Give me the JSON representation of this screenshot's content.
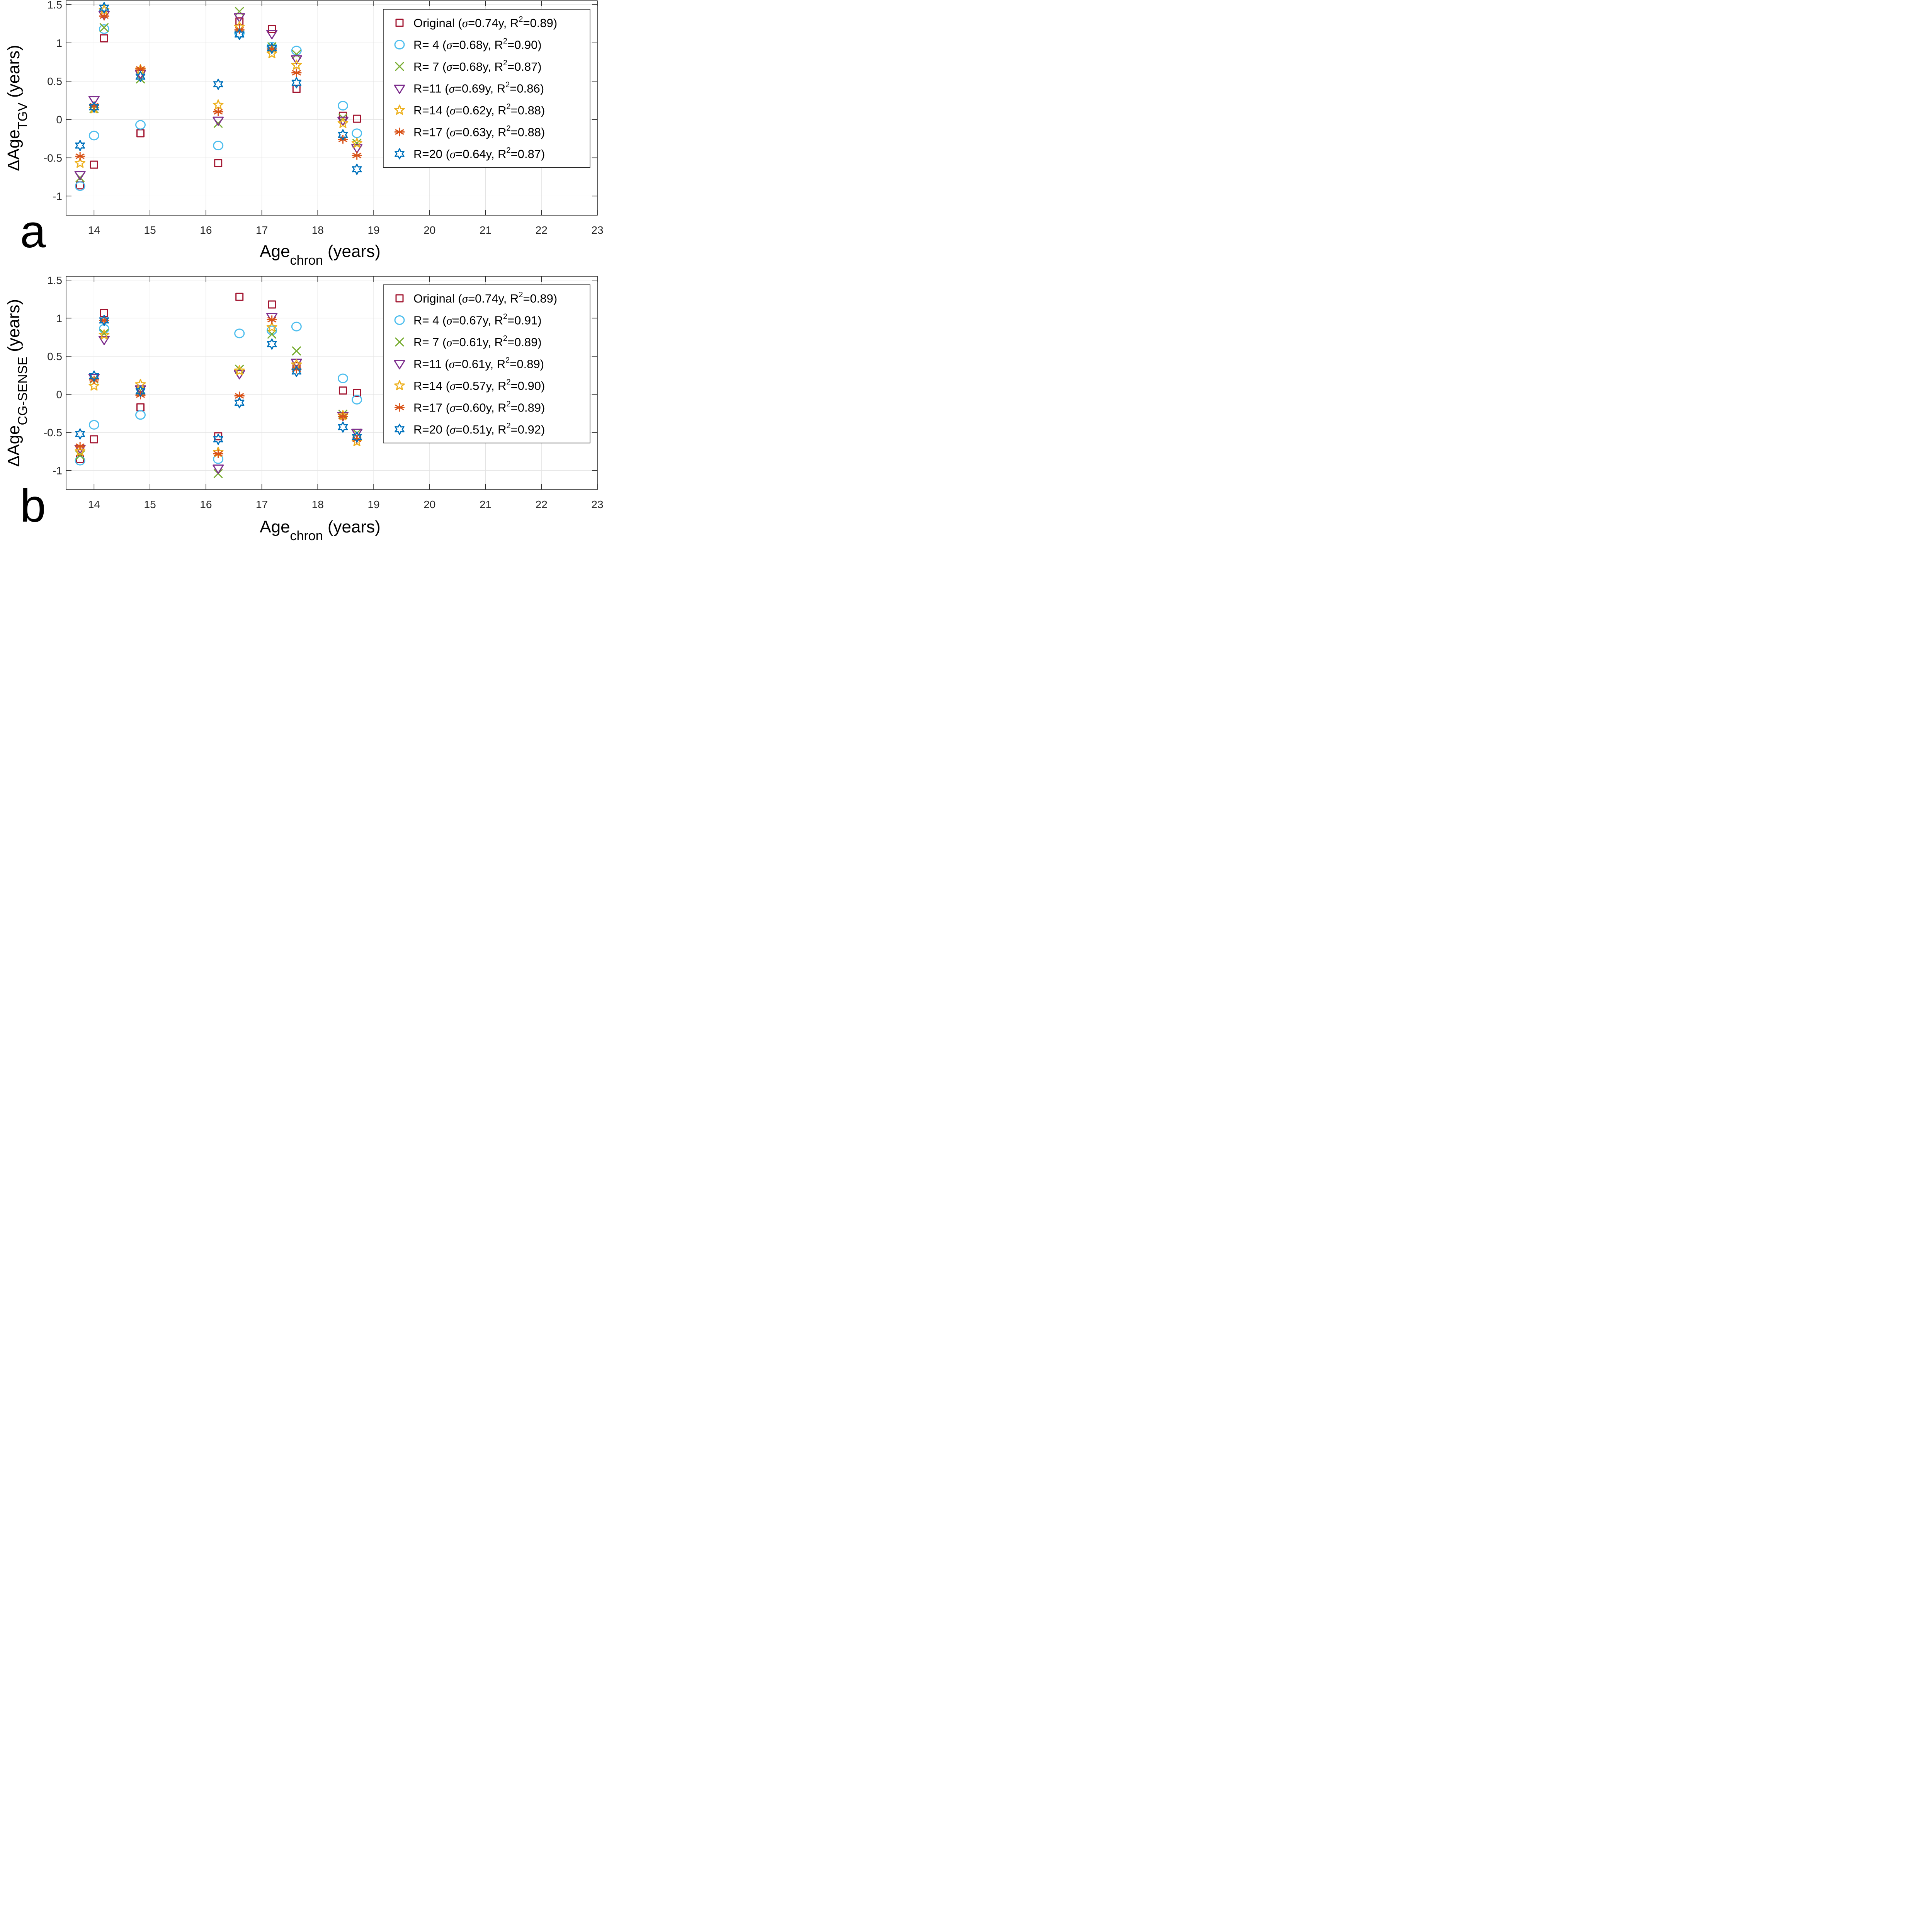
{
  "chart_data": [
    {
      "type": "scatter",
      "panel_letter": "a",
      "ylabel_main": "ΔAge",
      "ylabel_sub": "TGV",
      "ylabel_unit": " (years)",
      "xlabel_main": "Age",
      "xlabel_sub": "chron",
      "xlabel_unit": " (years)",
      "xlim": [
        13.5,
        23
      ],
      "ylim": [
        -1.25,
        1.55
      ],
      "xticks": [
        14,
        15,
        16,
        17,
        18,
        19,
        20,
        21,
        22,
        23
      ],
      "yticks": [
        -1,
        -0.5,
        0,
        0.5,
        1,
        1.5
      ],
      "ytick_labels": [
        "-1",
        "-0.5",
        "0",
        "0.5",
        "1",
        "1.5"
      ],
      "grid": true,
      "legend_position": "top-right",
      "x": [
        13.75,
        14.0,
        14.18,
        14.83,
        16.22,
        16.6,
        17.18,
        17.62,
        18.45,
        18.7
      ],
      "series": [
        {
          "name": "Original",
          "sigma": "0.74y",
          "r2": "0.89",
          "marker": "square",
          "color": "#A2142F",
          "values": [
            -0.86,
            -0.59,
            1.06,
            -0.18,
            -0.57,
            1.28,
            1.18,
            0.4,
            0.05,
            0.01
          ]
        },
        {
          "name": "R=  4",
          "sigma": "0.68y",
          "r2": "0.90",
          "marker": "circle",
          "color": "#4DBEEE",
          "values": [
            -0.87,
            -0.21,
            1.18,
            -0.07,
            -0.34,
            1.13,
            0.95,
            0.9,
            0.18,
            -0.18
          ]
        },
        {
          "name": "R=  7",
          "sigma": "0.68y",
          "r2": "0.87",
          "marker": "x",
          "color": "#77AC30",
          "values": [
            -0.76,
            0.14,
            1.2,
            0.53,
            -0.05,
            1.41,
            0.95,
            0.85,
            0.02,
            -0.31
          ]
        },
        {
          "name": "R=11",
          "sigma": "0.69y",
          "r2": "0.86",
          "marker": "triangle-down",
          "color": "#7E2F8E",
          "values": [
            -0.72,
            0.26,
            1.37,
            0.6,
            -0.01,
            1.34,
            1.12,
            0.79,
            -0.01,
            -0.37
          ]
        },
        {
          "name": "R=14",
          "sigma": "0.62y",
          "r2": "0.88",
          "marker": "pentagram",
          "color": "#EDB120",
          "values": [
            -0.57,
            0.14,
            1.43,
            0.65,
            0.19,
            1.21,
            0.86,
            0.71,
            -0.05,
            -0.31
          ]
        },
        {
          "name": "R=17",
          "sigma": "0.63y",
          "r2": "0.88",
          "marker": "asterisk",
          "color": "#D95319",
          "values": [
            -0.48,
            0.18,
            1.35,
            0.66,
            0.1,
            1.17,
            0.92,
            0.61,
            -0.26,
            -0.47
          ]
        },
        {
          "name": "R=20",
          "sigma": "0.64y",
          "r2": "0.87",
          "marker": "hexagram",
          "color": "#0072BD",
          "values": [
            -0.34,
            0.16,
            1.46,
            0.56,
            0.46,
            1.11,
            0.93,
            0.48,
            -0.2,
            -0.65
          ]
        }
      ]
    },
    {
      "type": "scatter",
      "panel_letter": "b",
      "ylabel_main": "ΔAge",
      "ylabel_sub": "CG-SENSE",
      "ylabel_unit": " (years)",
      "xlabel_main": "Age",
      "xlabel_sub": "chron",
      "xlabel_unit": " (years)",
      "xlim": [
        13.5,
        23
      ],
      "ylim": [
        -1.25,
        1.55
      ],
      "xticks": [
        14,
        15,
        16,
        17,
        18,
        19,
        20,
        21,
        22,
        23
      ],
      "yticks": [
        -1,
        -0.5,
        0,
        0.5,
        1,
        1.5
      ],
      "ytick_labels": [
        "-1",
        "-0.5",
        "0",
        "0.5",
        "1",
        "1.5"
      ],
      "grid": true,
      "legend_position": "top-right",
      "x": [
        13.75,
        14.0,
        14.18,
        14.83,
        16.22,
        16.6,
        17.18,
        17.62,
        18.45,
        18.7
      ],
      "series": [
        {
          "name": "Original",
          "sigma": "0.74y",
          "r2": "0.89",
          "marker": "square",
          "color": "#A2142F",
          "values": [
            -0.85,
            -0.59,
            1.07,
            -0.17,
            -0.55,
            1.28,
            1.18,
            0.37,
            0.05,
            0.02
          ]
        },
        {
          "name": "R=  4",
          "sigma": "0.67y",
          "r2": "0.91",
          "marker": "circle",
          "color": "#4DBEEE",
          "values": [
            -0.87,
            -0.4,
            0.86,
            -0.27,
            -0.85,
            0.8,
            0.84,
            0.89,
            0.21,
            -0.07
          ]
        },
        {
          "name": "R=  7",
          "sigma": "0.61y",
          "r2": "0.89",
          "marker": "x",
          "color": "#77AC30",
          "values": [
            -0.8,
            0.2,
            0.8,
            0.05,
            -1.04,
            0.33,
            0.79,
            0.57,
            -0.26,
            -0.51
          ]
        },
        {
          "name": "R=11",
          "sigma": "0.61y",
          "r2": "0.89",
          "marker": "triangle-down",
          "color": "#7E2F8E",
          "values": [
            -0.71,
            0.22,
            0.72,
            0.07,
            -0.97,
            0.27,
            1.02,
            0.42,
            -0.28,
            -0.5
          ]
        },
        {
          "name": "R=14",
          "sigma": "0.57y",
          "r2": "0.90",
          "marker": "pentagram",
          "color": "#EDB120",
          "values": [
            -0.75,
            0.11,
            0.78,
            0.13,
            -0.76,
            0.31,
            0.88,
            0.39,
            -0.28,
            -0.62
          ]
        },
        {
          "name": "R=17",
          "sigma": "0.60y",
          "r2": "0.89",
          "marker": "asterisk",
          "color": "#D95319",
          "values": [
            -0.68,
            0.19,
            0.97,
            -0.01,
            -0.78,
            -0.02,
            0.98,
            0.33,
            -0.29,
            -0.59
          ]
        },
        {
          "name": "R=20",
          "sigma": "0.51y",
          "r2": "0.92",
          "marker": "hexagram",
          "color": "#0072BD",
          "values": [
            -0.52,
            0.24,
            0.97,
            0.04,
            -0.59,
            -0.11,
            0.66,
            0.3,
            -0.43,
            -0.56
          ]
        }
      ]
    }
  ]
}
